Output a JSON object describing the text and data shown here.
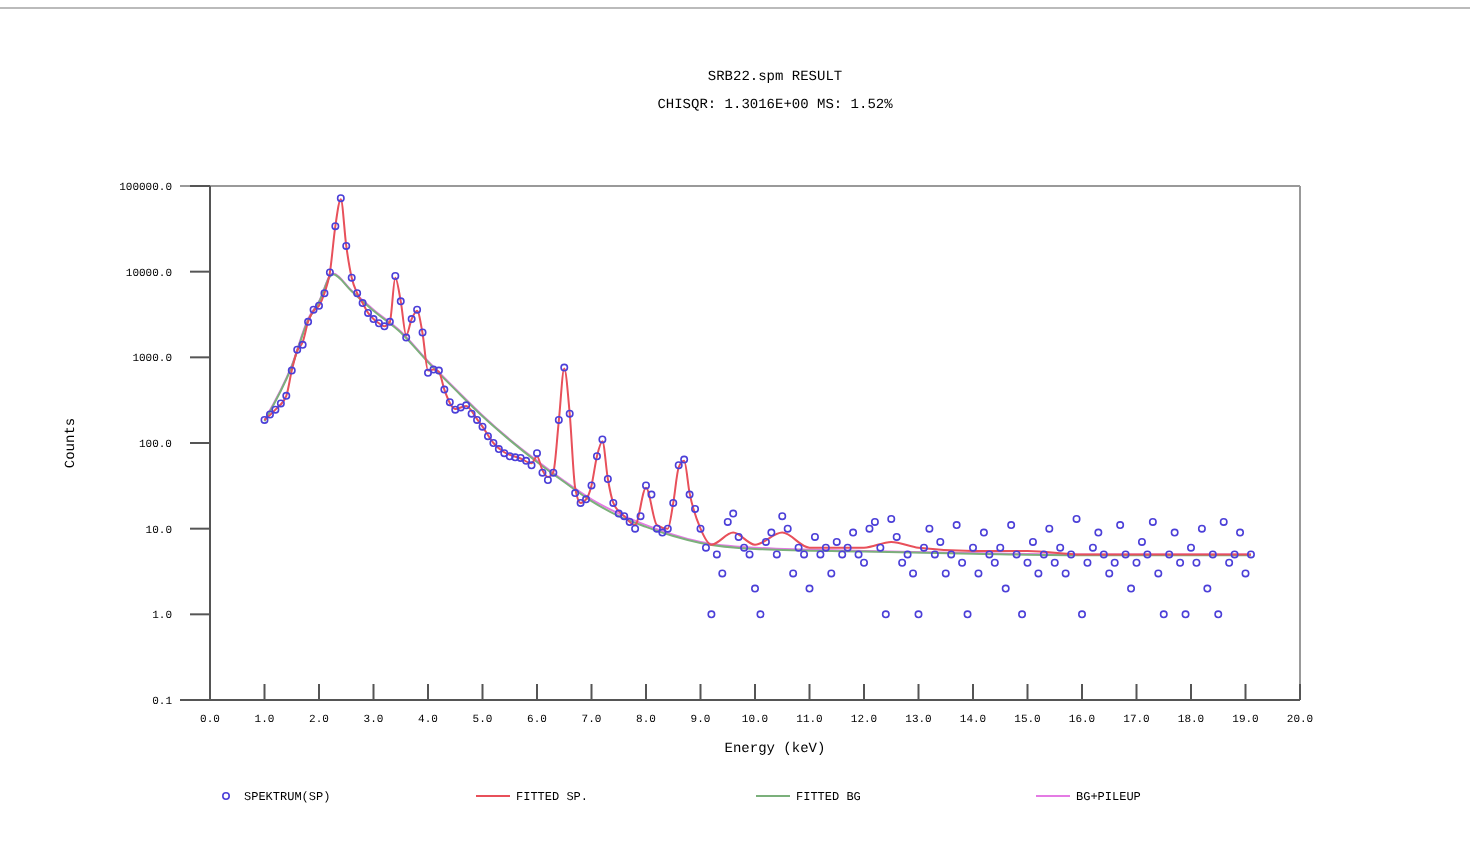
{
  "chart_data": {
    "type": "line",
    "title": "SRB22.spm  RESULT",
    "subtitle": "CHISQR:  1.3016E+00 MS:  1.52%",
    "xlabel": "Energy (keV)",
    "ylabel": "Counts",
    "log": "y",
    "grid": false,
    "legend": "bottom",
    "xlim": [
      0,
      20
    ],
    "ylim": [
      0.1,
      100000
    ],
    "xticks": [
      {
        "value": 0,
        "label": "0.0"
      },
      {
        "value": 1,
        "label": "1.0"
      },
      {
        "value": 2,
        "label": "2.0"
      },
      {
        "value": 3,
        "label": "3.0"
      },
      {
        "value": 4,
        "label": "4.0"
      },
      {
        "value": 5,
        "label": "5.0"
      },
      {
        "value": 6,
        "label": "6.0"
      },
      {
        "value": 7,
        "label": "7.0"
      },
      {
        "value": 8,
        "label": "8.0"
      },
      {
        "value": 9,
        "label": "9.0"
      },
      {
        "value": 10,
        "label": "10.0"
      },
      {
        "value": 11,
        "label": "11.0"
      },
      {
        "value": 12,
        "label": "12.0"
      },
      {
        "value": 13,
        "label": "13.0"
      },
      {
        "value": 14,
        "label": "14.0"
      },
      {
        "value": 15,
        "label": "15.0"
      },
      {
        "value": 16,
        "label": "16.0"
      },
      {
        "value": 17,
        "label": "17.0"
      },
      {
        "value": 18,
        "label": "18.0"
      },
      {
        "value": 19,
        "label": "19.0"
      },
      {
        "value": 20,
        "label": "20.0"
      }
    ],
    "yticks": [
      {
        "value": 0.1,
        "label": "0.1"
      },
      {
        "value": 1,
        "label": "1.0"
      },
      {
        "value": 10,
        "label": "10.0"
      },
      {
        "value": 100,
        "label": "100.0"
      },
      {
        "value": 1000,
        "label": "1000.0"
      },
      {
        "value": 10000,
        "label": "10000.0"
      },
      {
        "value": 100000,
        "label": "100000.0"
      }
    ],
    "series": [
      {
        "name": "SPEKTRUM(SP)",
        "type": "scatter",
        "marker": "circle",
        "color": "#4b3fd8",
        "x": [
          1.0,
          1.1,
          1.2,
          1.3,
          1.4,
          1.5,
          1.6,
          1.7,
          1.8,
          1.9,
          2.0,
          2.1,
          2.2,
          2.3,
          2.4,
          2.5,
          2.6,
          2.7,
          2.8,
          2.9,
          3.0,
          3.1,
          3.2,
          3.3,
          3.4,
          3.5,
          3.6,
          3.7,
          3.8,
          3.9,
          4.0,
          4.1,
          4.2,
          4.3,
          4.4,
          4.5,
          4.6,
          4.7,
          4.8,
          4.9,
          5.0,
          5.1,
          5.2,
          5.3,
          5.4,
          5.5,
          5.6,
          5.7,
          5.8,
          5.9,
          6.0,
          6.1,
          6.2,
          6.3,
          6.4,
          6.5,
          6.6,
          6.7,
          6.8,
          6.9,
          7.0,
          7.1,
          7.2,
          7.3,
          7.4,
          7.5,
          7.6,
          7.7,
          7.8,
          7.9,
          8.0,
          8.1,
          8.2,
          8.3,
          8.4,
          8.5,
          8.6,
          8.7,
          8.8,
          8.9,
          9.0,
          9.1,
          9.2,
          9.3,
          9.4,
          9.5,
          9.6,
          9.7,
          9.8,
          9.9,
          10.0,
          10.1,
          10.2,
          10.3,
          10.4,
          10.5,
          10.6,
          10.7,
          10.8,
          10.9,
          11.0,
          11.1,
          11.2,
          11.3,
          11.4,
          11.5,
          11.6,
          11.7,
          11.8,
          11.9,
          12.0,
          12.1,
          12.2,
          12.3,
          12.4,
          12.5,
          12.6,
          12.7,
          12.8,
          12.9,
          13.0,
          13.1,
          13.2,
          13.3,
          13.4,
          13.5,
          13.6,
          13.7,
          13.8,
          13.9,
          14.0,
          14.1,
          14.2,
          14.3,
          14.4,
          14.5,
          14.6,
          14.7,
          14.8,
          14.9,
          15.0,
          15.1,
          15.2,
          15.3,
          15.4,
          15.5,
          15.6,
          15.7,
          15.8,
          15.9,
          16.0,
          16.1,
          16.2,
          16.3,
          16.4,
          16.5,
          16.6,
          16.7,
          16.8,
          16.9,
          17.0,
          17.1,
          17.2,
          17.3,
          17.4,
          17.5,
          17.6,
          17.7,
          17.8,
          17.9,
          18.0,
          18.1,
          18.2,
          18.3,
          18.4,
          18.5,
          18.6,
          18.7,
          18.8,
          18.9,
          19.0,
          19.1
        ],
        "values": [
          186,
          215,
          245,
          290,
          355,
          700,
          1230,
          1400,
          2600,
          3600,
          4000,
          5600,
          9800,
          34000,
          72000,
          20000,
          8500,
          5600,
          4300,
          3300,
          2800,
          2500,
          2300,
          2600,
          8900,
          4500,
          1700,
          2800,
          3600,
          1950,
          660,
          720,
          700,
          420,
          300,
          245,
          260,
          275,
          220,
          186,
          155,
          120,
          100,
          85,
          76,
          70,
          68,
          67,
          62,
          55,
          76,
          45,
          37,
          45,
          186,
          760,
          220,
          26,
          20,
          22,
          32,
          70,
          110,
          38,
          20,
          15,
          14,
          12,
          10,
          14,
          32,
          25,
          10,
          9,
          10,
          20,
          55,
          64,
          25,
          17,
          10,
          6,
          1,
          5,
          3,
          12,
          15,
          8,
          6,
          5,
          2,
          1,
          7,
          9,
          5,
          14,
          10,
          3,
          6,
          5,
          2,
          8,
          5,
          6,
          3,
          7,
          5,
          6,
          9,
          5,
          4,
          10,
          12,
          6,
          1,
          13,
          8,
          4,
          5,
          3,
          1,
          6,
          10,
          5,
          7,
          3,
          5,
          11,
          4,
          1,
          6,
          3,
          9,
          5,
          4,
          6,
          2,
          11,
          5,
          1,
          4,
          7,
          3,
          5,
          10,
          4,
          6,
          3,
          5,
          13,
          1,
          4,
          6,
          9,
          5,
          3,
          4,
          11,
          5,
          2,
          4,
          7,
          5,
          12,
          3,
          1,
          5,
          9,
          4,
          1,
          6,
          4,
          10,
          2,
          5,
          1,
          12,
          4,
          5,
          9,
          3,
          5
        ]
      },
      {
        "name": "FITTED SP.",
        "color": "#e8505a",
        "x": [
          1.0,
          1.2,
          1.4,
          1.5,
          1.6,
          1.7,
          1.8,
          1.9,
          2.0,
          2.1,
          2.2,
          2.3,
          2.4,
          2.5,
          2.6,
          2.7,
          2.8,
          2.9,
          3.0,
          3.1,
          3.2,
          3.3,
          3.4,
          3.5,
          3.6,
          3.7,
          3.8,
          3.9,
          4.0,
          4.1,
          4.2,
          4.3,
          4.5,
          4.7,
          4.9,
          5.0,
          5.2,
          5.4,
          5.7,
          5.9,
          6.0,
          6.1,
          6.2,
          6.3,
          6.4,
          6.5,
          6.6,
          6.7,
          6.8,
          6.9,
          7.0,
          7.1,
          7.2,
          7.3,
          7.4,
          7.6,
          7.8,
          8.0,
          8.2,
          8.4,
          8.5,
          8.6,
          8.7,
          8.8,
          9.0,
          9.2,
          9.6,
          10.0,
          10.5,
          11.0,
          12.0,
          12.5,
          13.0,
          14.0,
          15.0,
          16.0,
          17.0,
          18.0,
          19.1
        ],
        "values": [
          186,
          245,
          355,
          700,
          1200,
          1500,
          2600,
          3500,
          4000,
          5600,
          9800,
          34000,
          70000,
          20000,
          8500,
          5600,
          4300,
          3300,
          2800,
          2500,
          2300,
          2600,
          8500,
          4500,
          1800,
          2800,
          3500,
          1900,
          700,
          720,
          680,
          420,
          250,
          270,
          190,
          155,
          100,
          78,
          66,
          58,
          70,
          48,
          40,
          46,
          180,
          740,
          220,
          30,
          20,
          22,
          32,
          70,
          105,
          38,
          20,
          14,
          11,
          30,
          11,
          10,
          20,
          52,
          62,
          26,
          10,
          6.5,
          9,
          6.5,
          9,
          6,
          6,
          7,
          6,
          5.5,
          5.5,
          5,
          5,
          5,
          5
        ]
      },
      {
        "name": "FITTED BG",
        "color": "#7bb07b",
        "x": [
          1.0,
          1.5,
          1.8,
          2.0,
          2.25,
          2.6,
          3.0,
          3.5,
          4.0,
          4.5,
          5.0,
          5.5,
          6.0,
          6.5,
          7.0,
          7.5,
          8.0,
          8.5,
          9.0,
          10.0,
          12.0,
          14.0,
          16.0,
          19.1
        ],
        "values": [
          180,
          780,
          2700,
          4400,
          9300,
          5900,
          3500,
          1950,
          880,
          420,
          205,
          108,
          60,
          35,
          21,
          14,
          10.5,
          8.2,
          6.8,
          5.8,
          5.4,
          5.1,
          4.9,
          4.9
        ]
      },
      {
        "name": "BG+PILEUP",
        "color": "#e47be4",
        "x": [
          1.0,
          1.5,
          1.8,
          2.0,
          2.25,
          2.6,
          3.0,
          3.5,
          4.0,
          4.5,
          5.0,
          5.5,
          6.0,
          6.5,
          7.0,
          7.5,
          8.0,
          8.5,
          9.0,
          10.0,
          12.0,
          14.0,
          16.0,
          19.1
        ],
        "values": [
          186,
          800,
          2800,
          4500,
          9500,
          6000,
          3600,
          2000,
          900,
          430,
          210,
          110,
          62,
          36,
          22,
          15,
          11,
          8.5,
          7,
          6,
          5.5,
          5.2,
          5,
          5
        ]
      }
    ]
  }
}
